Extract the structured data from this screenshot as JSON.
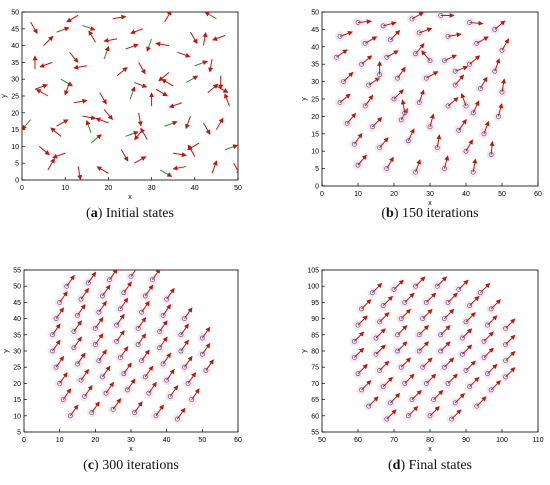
{
  "chart_data": [
    {
      "type": "scatter",
      "panel_letter": "a",
      "caption": "Initial states",
      "xlabel": "x",
      "ylabel": "y",
      "xlim": [
        0,
        50
      ],
      "ylim": [
        0,
        50
      ],
      "xticks": [
        0,
        10,
        20,
        30,
        40,
        50
      ],
      "yticks": [
        0,
        5,
        10,
        15,
        20,
        25,
        30,
        35,
        40,
        45,
        50
      ],
      "grid": false,
      "legend": "none",
      "points": [
        [
          2,
          47,
          300
        ],
        [
          8,
          44,
          20
        ],
        [
          14,
          46,
          340
        ],
        [
          21,
          48,
          10
        ],
        [
          28,
          45,
          200
        ],
        [
          33,
          47,
          60
        ],
        [
          39,
          44,
          300
        ],
        [
          45,
          48,
          150
        ],
        [
          5,
          40,
          45
        ],
        [
          11,
          38,
          310
        ],
        [
          17,
          41,
          120
        ],
        [
          24,
          39,
          20
        ],
        [
          30,
          42,
          250
        ],
        [
          36,
          38,
          340
        ],
        [
          42,
          40,
          80
        ],
        [
          47,
          43,
          200
        ],
        [
          3,
          33,
          90
        ],
        [
          9,
          30,
          330
        ],
        [
          15,
          34,
          190
        ],
        [
          22,
          31,
          40
        ],
        [
          27,
          35,
          300
        ],
        [
          34,
          32,
          220
        ],
        [
          40,
          34,
          20
        ],
        [
          46,
          31,
          270
        ],
        [
          6,
          25,
          150
        ],
        [
          12,
          23,
          10
        ],
        [
          18,
          26,
          300
        ],
        [
          25,
          24,
          70
        ],
        [
          31,
          27,
          330
        ],
        [
          37,
          23,
          200
        ],
        [
          43,
          26,
          40
        ],
        [
          48,
          22,
          110
        ],
        [
          2,
          18,
          230
        ],
        [
          8,
          16,
          30
        ],
        [
          14,
          19,
          350
        ],
        [
          20,
          17,
          160
        ],
        [
          27,
          20,
          280
        ],
        [
          33,
          16,
          20
        ],
        [
          39,
          19,
          250
        ],
        [
          45,
          15,
          60
        ],
        [
          4,
          10,
          320
        ],
        [
          10,
          8,
          200
        ],
        [
          16,
          11,
          40
        ],
        [
          23,
          9,
          300
        ],
        [
          29,
          12,
          120
        ],
        [
          35,
          8,
          350
        ],
        [
          41,
          11,
          210
        ],
        [
          47,
          9,
          20
        ],
        [
          6,
          3,
          60
        ],
        [
          13,
          4,
          280
        ],
        [
          20,
          2,
          150
        ],
        [
          26,
          5,
          30
        ],
        [
          32,
          3,
          330
        ],
        [
          38,
          4,
          190
        ],
        [
          44,
          2,
          70
        ],
        [
          49,
          5,
          300
        ],
        [
          7,
          35,
          200
        ],
        [
          19,
          36,
          70
        ],
        [
          26,
          29,
          340
        ],
        [
          35,
          28,
          150
        ],
        [
          44,
          36,
          260
        ],
        [
          3,
          27,
          20
        ],
        [
          16,
          14,
          110
        ],
        [
          28,
          15,
          230
        ],
        [
          42,
          17,
          300
        ],
        [
          22,
          42,
          190
        ],
        [
          11,
          29,
          250
        ],
        [
          38,
          29,
          30
        ],
        [
          30,
          22,
          90
        ],
        [
          19,
          21,
          310
        ],
        [
          9,
          13,
          140
        ],
        [
          34,
          40,
          170
        ],
        [
          24,
          13,
          20
        ],
        [
          45,
          28,
          330
        ],
        [
          13,
          49,
          210
        ],
        [
          40,
          7,
          120
        ]
      ]
    },
    {
      "type": "scatter",
      "panel_letter": "b",
      "caption": "150 iterations",
      "xlabel": "x",
      "ylabel": "y",
      "xlim": [
        0,
        60
      ],
      "ylim": [
        0,
        50
      ],
      "xticks": [
        0,
        10,
        20,
        30,
        40,
        50,
        60
      ],
      "yticks": [
        0,
        5,
        10,
        15,
        20,
        25,
        30,
        35,
        40,
        45,
        50
      ],
      "grid": false,
      "legend": "none",
      "points": [
        [
          10,
          47,
          5
        ],
        [
          17,
          46,
          15
        ],
        [
          25,
          48,
          30
        ],
        [
          33,
          49,
          0
        ],
        [
          41,
          47,
          355
        ],
        [
          48,
          45,
          40
        ],
        [
          5,
          43,
          20
        ],
        [
          12,
          41,
          30
        ],
        [
          19,
          42,
          45
        ],
        [
          27,
          44,
          20
        ],
        [
          35,
          43,
          10
        ],
        [
          43,
          41,
          30
        ],
        [
          50,
          39,
          60
        ],
        [
          4,
          37,
          35
        ],
        [
          11,
          35,
          40
        ],
        [
          18,
          37,
          30
        ],
        [
          26,
          38,
          50
        ],
        [
          34,
          36,
          25
        ],
        [
          41,
          35,
          40
        ],
        [
          48,
          33,
          70
        ],
        [
          6,
          30,
          45
        ],
        [
          13,
          29,
          35
        ],
        [
          21,
          31,
          55
        ],
        [
          29,
          31,
          30
        ],
        [
          37,
          29,
          50
        ],
        [
          44,
          28,
          60
        ],
        [
          50,
          27,
          80
        ],
        [
          5,
          24,
          40
        ],
        [
          12,
          23,
          55
        ],
        [
          20,
          25,
          45
        ],
        [
          27,
          24,
          70
        ],
        [
          35,
          23,
          40
        ],
        [
          42,
          21,
          65
        ],
        [
          49,
          20,
          75
        ],
        [
          7,
          18,
          50
        ],
        [
          14,
          17,
          45
        ],
        [
          22,
          19,
          60
        ],
        [
          30,
          17,
          75
        ],
        [
          38,
          16,
          55
        ],
        [
          45,
          15,
          70
        ],
        [
          9,
          12,
          55
        ],
        [
          16,
          11,
          50
        ],
        [
          24,
          13,
          65
        ],
        [
          32,
          11,
          80
        ],
        [
          40,
          10,
          60
        ],
        [
          47,
          9,
          85
        ],
        [
          10,
          6,
          50
        ],
        [
          18,
          5,
          60
        ],
        [
          26,
          4,
          70
        ],
        [
          34,
          5,
          75
        ],
        [
          42,
          4,
          80
        ],
        [
          30,
          36,
          130
        ],
        [
          23,
          21,
          100
        ],
        [
          37,
          33,
          20
        ],
        [
          16,
          32,
          90
        ],
        [
          40,
          23,
          110
        ]
      ]
    },
    {
      "type": "scatter",
      "panel_letter": "c",
      "caption": "300 iterations",
      "xlabel": "x",
      "ylabel": "y",
      "xlim": [
        0,
        60
      ],
      "ylim": [
        5,
        55
      ],
      "xticks": [
        0,
        10,
        20,
        30,
        40,
        50,
        60
      ],
      "yticks": [
        5,
        10,
        15,
        20,
        25,
        30,
        35,
        40,
        45,
        50,
        55
      ],
      "grid": false,
      "legend": "none",
      "points": [
        [
          12,
          50,
          55
        ],
        [
          18,
          51,
          55
        ],
        [
          24,
          52,
          55
        ],
        [
          30,
          53,
          55
        ],
        [
          36,
          52,
          55
        ],
        [
          10,
          45,
          55
        ],
        [
          16,
          46,
          55
        ],
        [
          22,
          47,
          55
        ],
        [
          28,
          48,
          55
        ],
        [
          34,
          47,
          55
        ],
        [
          40,
          46,
          55
        ],
        [
          9,
          40,
          55
        ],
        [
          15,
          41,
          55
        ],
        [
          21,
          42,
          55
        ],
        [
          27,
          43,
          55
        ],
        [
          33,
          42,
          55
        ],
        [
          39,
          41,
          55
        ],
        [
          45,
          40,
          55
        ],
        [
          8,
          35,
          55
        ],
        [
          14,
          36,
          55
        ],
        [
          20,
          37,
          55
        ],
        [
          26,
          38,
          55
        ],
        [
          32,
          37,
          55
        ],
        [
          38,
          36,
          55
        ],
        [
          44,
          35,
          55
        ],
        [
          50,
          34,
          55
        ],
        [
          8,
          30,
          55
        ],
        [
          14,
          31,
          55
        ],
        [
          20,
          32,
          55
        ],
        [
          26,
          33,
          55
        ],
        [
          32,
          32,
          55
        ],
        [
          38,
          31,
          55
        ],
        [
          44,
          30,
          55
        ],
        [
          50,
          29,
          55
        ],
        [
          9,
          25,
          55
        ],
        [
          15,
          26,
          55
        ],
        [
          21,
          27,
          55
        ],
        [
          27,
          28,
          55
        ],
        [
          33,
          27,
          55
        ],
        [
          39,
          26,
          55
        ],
        [
          45,
          25,
          55
        ],
        [
          51,
          24,
          55
        ],
        [
          10,
          20,
          55
        ],
        [
          16,
          21,
          55
        ],
        [
          22,
          22,
          55
        ],
        [
          28,
          23,
          55
        ],
        [
          34,
          22,
          55
        ],
        [
          40,
          21,
          55
        ],
        [
          46,
          20,
          55
        ],
        [
          11,
          15,
          55
        ],
        [
          17,
          16,
          55
        ],
        [
          23,
          17,
          55
        ],
        [
          29,
          18,
          55
        ],
        [
          35,
          17,
          55
        ],
        [
          41,
          16,
          55
        ],
        [
          47,
          15,
          55
        ],
        [
          13,
          10,
          55
        ],
        [
          19,
          11,
          55
        ],
        [
          25,
          12,
          55
        ],
        [
          31,
          11,
          55
        ],
        [
          37,
          10,
          55
        ],
        [
          43,
          9,
          55
        ]
      ]
    },
    {
      "type": "scatter",
      "panel_letter": "d",
      "caption": "Final states",
      "xlabel": "x",
      "ylabel": "y",
      "xlim": [
        50,
        110
      ],
      "ylim": [
        55,
        105
      ],
      "xticks": [
        50,
        60,
        70,
        80,
        90,
        100,
        110
      ],
      "yticks": [
        55,
        60,
        65,
        70,
        75,
        80,
        85,
        90,
        95,
        100,
        105
      ],
      "grid": false,
      "legend": "none",
      "points": [
        [
          64,
          98,
          45
        ],
        [
          70,
          99,
          45
        ],
        [
          76,
          100,
          45
        ],
        [
          82,
          100,
          45
        ],
        [
          88,
          99,
          45
        ],
        [
          94,
          98,
          45
        ],
        [
          61,
          93,
          45
        ],
        [
          67,
          94,
          45
        ],
        [
          73,
          95,
          45
        ],
        [
          79,
          95,
          45
        ],
        [
          85,
          95,
          45
        ],
        [
          91,
          94,
          45
        ],
        [
          97,
          93,
          45
        ],
        [
          60,
          88,
          45
        ],
        [
          66,
          89,
          45
        ],
        [
          72,
          90,
          45
        ],
        [
          78,
          90,
          45
        ],
        [
          84,
          90,
          45
        ],
        [
          90,
          89,
          45
        ],
        [
          96,
          88,
          45
        ],
        [
          101,
          87,
          45
        ],
        [
          59,
          83,
          45
        ],
        [
          65,
          84,
          45
        ],
        [
          71,
          85,
          45
        ],
        [
          77,
          85,
          45
        ],
        [
          83,
          85,
          45
        ],
        [
          89,
          84,
          45
        ],
        [
          95,
          83,
          45
        ],
        [
          101,
          82,
          45
        ],
        [
          59,
          78,
          45
        ],
        [
          65,
          79,
          45
        ],
        [
          71,
          80,
          45
        ],
        [
          77,
          80,
          45
        ],
        [
          83,
          80,
          45
        ],
        [
          89,
          79,
          45
        ],
        [
          95,
          78,
          45
        ],
        [
          101,
          77,
          45
        ],
        [
          60,
          73,
          45
        ],
        [
          66,
          74,
          45
        ],
        [
          72,
          75,
          45
        ],
        [
          78,
          75,
          45
        ],
        [
          84,
          75,
          45
        ],
        [
          90,
          74,
          45
        ],
        [
          96,
          73,
          45
        ],
        [
          101,
          72,
          45
        ],
        [
          61,
          68,
          45
        ],
        [
          67,
          69,
          45
        ],
        [
          73,
          70,
          45
        ],
        [
          79,
          70,
          45
        ],
        [
          85,
          70,
          45
        ],
        [
          91,
          69,
          45
        ],
        [
          97,
          68,
          45
        ],
        [
          63,
          63,
          45
        ],
        [
          69,
          64,
          45
        ],
        [
          75,
          65,
          45
        ],
        [
          81,
          65,
          45
        ],
        [
          87,
          64,
          45
        ],
        [
          93,
          63,
          45
        ],
        [
          68,
          59,
          45
        ],
        [
          74,
          60,
          45
        ],
        [
          80,
          60,
          45
        ],
        [
          86,
          59,
          45
        ]
      ]
    }
  ],
  "colors": {
    "arrow": "#c0160c",
    "arrow_alt": "#2e8b2e",
    "agent": "#2b3f8f",
    "halo": "#f2b8c6"
  }
}
